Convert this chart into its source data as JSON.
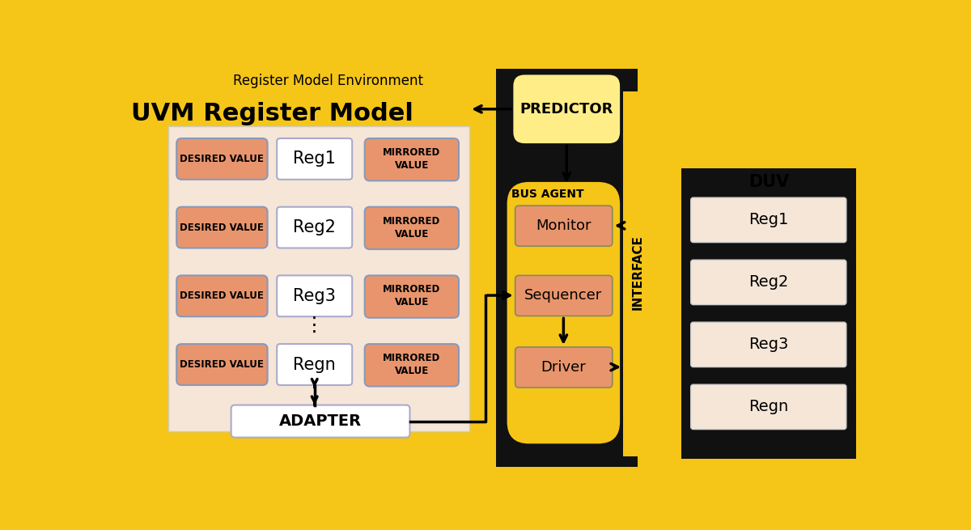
{
  "bg_outer": "#F5C518",
  "bg_inner_uvm": "#F5E6D8",
  "bg_bus_agent": "#F5C518",
  "bg_black": "#111111",
  "desired_color": "#E8956D",
  "mirrored_color": "#E8956D",
  "reg_color": "#FFFFFF",
  "adapter_color": "#FFFFFF",
  "monitor_color": "#E8956D",
  "sequencer_color": "#E8956D",
  "driver_color": "#E8956D",
  "predictor_color": "#FFEE88",
  "interface_color": "#F5C518",
  "duv_reg_color": "#F5E6D8",
  "duv_outer_color": "#F5C518",
  "title_env": "Register Model Environment",
  "title_uvm": "UVM Register Model",
  "title_duv": "DUV",
  "title_predictor": "PREDICTOR",
  "title_bus_agent": "BUS AGENT",
  "title_interface": "INTERFACE",
  "title_adapter": "ADAPTER",
  "regs": [
    "Reg1",
    "Reg2",
    "Reg3",
    "Regn"
  ],
  "desired_label": "DESIRED VALUE",
  "monitor_label": "Monitor",
  "sequencer_label": "Sequencer",
  "driver_label": "Driver"
}
